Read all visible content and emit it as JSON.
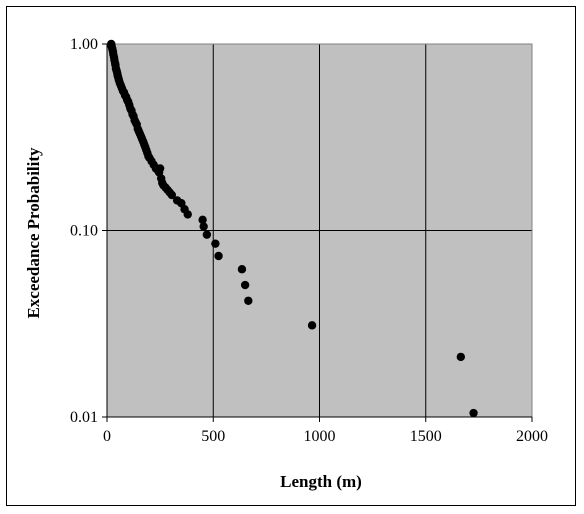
{
  "chart_data": {
    "type": "scatter",
    "title": "",
    "xlabel": "Length (m)",
    "ylabel": "Exceedance Probability",
    "x_scale": "linear",
    "y_scale": "log",
    "xlim": [
      0,
      2000
    ],
    "ylim": [
      0.01,
      1.0
    ],
    "x_ticks": [
      0,
      500,
      1000,
      1500,
      2000
    ],
    "x_tick_labels": [
      "0",
      "500",
      "1000",
      "1500",
      "2000"
    ],
    "y_ticks": [
      0.01,
      0.1,
      1.0
    ],
    "y_tick_labels": [
      "0.01",
      "0.10",
      "1.00"
    ],
    "grid": true,
    "plot_background": "#c0c0c0",
    "marker_color": "#000000",
    "series": [
      {
        "points": [
          [
            20,
            1.0
          ],
          [
            22,
            0.97
          ],
          [
            25,
            0.94
          ],
          [
            28,
            0.91
          ],
          [
            30,
            0.88
          ],
          [
            33,
            0.85
          ],
          [
            35,
            0.82
          ],
          [
            38,
            0.79
          ],
          [
            40,
            0.77
          ],
          [
            42,
            0.74
          ],
          [
            45,
            0.72
          ],
          [
            48,
            0.7
          ],
          [
            50,
            0.68
          ],
          [
            53,
            0.66
          ],
          [
            56,
            0.64
          ],
          [
            60,
            0.62
          ],
          [
            65,
            0.6
          ],
          [
            70,
            0.58
          ],
          [
            75,
            0.56
          ],
          [
            80,
            0.55
          ],
          [
            85,
            0.53
          ],
          [
            90,
            0.52
          ],
          [
            95,
            0.5
          ],
          [
            100,
            0.49
          ],
          [
            105,
            0.47
          ],
          [
            110,
            0.45
          ],
          [
            115,
            0.44
          ],
          [
            120,
            0.42
          ],
          [
            125,
            0.41
          ],
          [
            130,
            0.39
          ],
          [
            135,
            0.38
          ],
          [
            140,
            0.37
          ],
          [
            145,
            0.35
          ],
          [
            150,
            0.34
          ],
          [
            155,
            0.33
          ],
          [
            160,
            0.32
          ],
          [
            165,
            0.31
          ],
          [
            170,
            0.3
          ],
          [
            175,
            0.29
          ],
          [
            180,
            0.28
          ],
          [
            185,
            0.27
          ],
          [
            190,
            0.26
          ],
          [
            195,
            0.25
          ],
          [
            200,
            0.245
          ],
          [
            210,
            0.235
          ],
          [
            220,
            0.225
          ],
          [
            230,
            0.215
          ],
          [
            240,
            0.21
          ],
          [
            245,
            0.205
          ],
          [
            250,
            0.215
          ],
          [
            255,
            0.19
          ],
          [
            260,
            0.18
          ],
          [
            265,
            0.175
          ],
          [
            275,
            0.17
          ],
          [
            285,
            0.165
          ],
          [
            295,
            0.16
          ],
          [
            305,
            0.155
          ],
          [
            330,
            0.145
          ],
          [
            350,
            0.14
          ],
          [
            365,
            0.13
          ],
          [
            380,
            0.122
          ],
          [
            450,
            0.114
          ],
          [
            455,
            0.105
          ],
          [
            470,
            0.095
          ],
          [
            510,
            0.085
          ],
          [
            525,
            0.073
          ],
          [
            635,
            0.062
          ],
          [
            650,
            0.051
          ],
          [
            665,
            0.042
          ],
          [
            965,
            0.031
          ],
          [
            1665,
            0.021
          ],
          [
            1725,
            0.0105
          ]
        ]
      }
    ]
  }
}
